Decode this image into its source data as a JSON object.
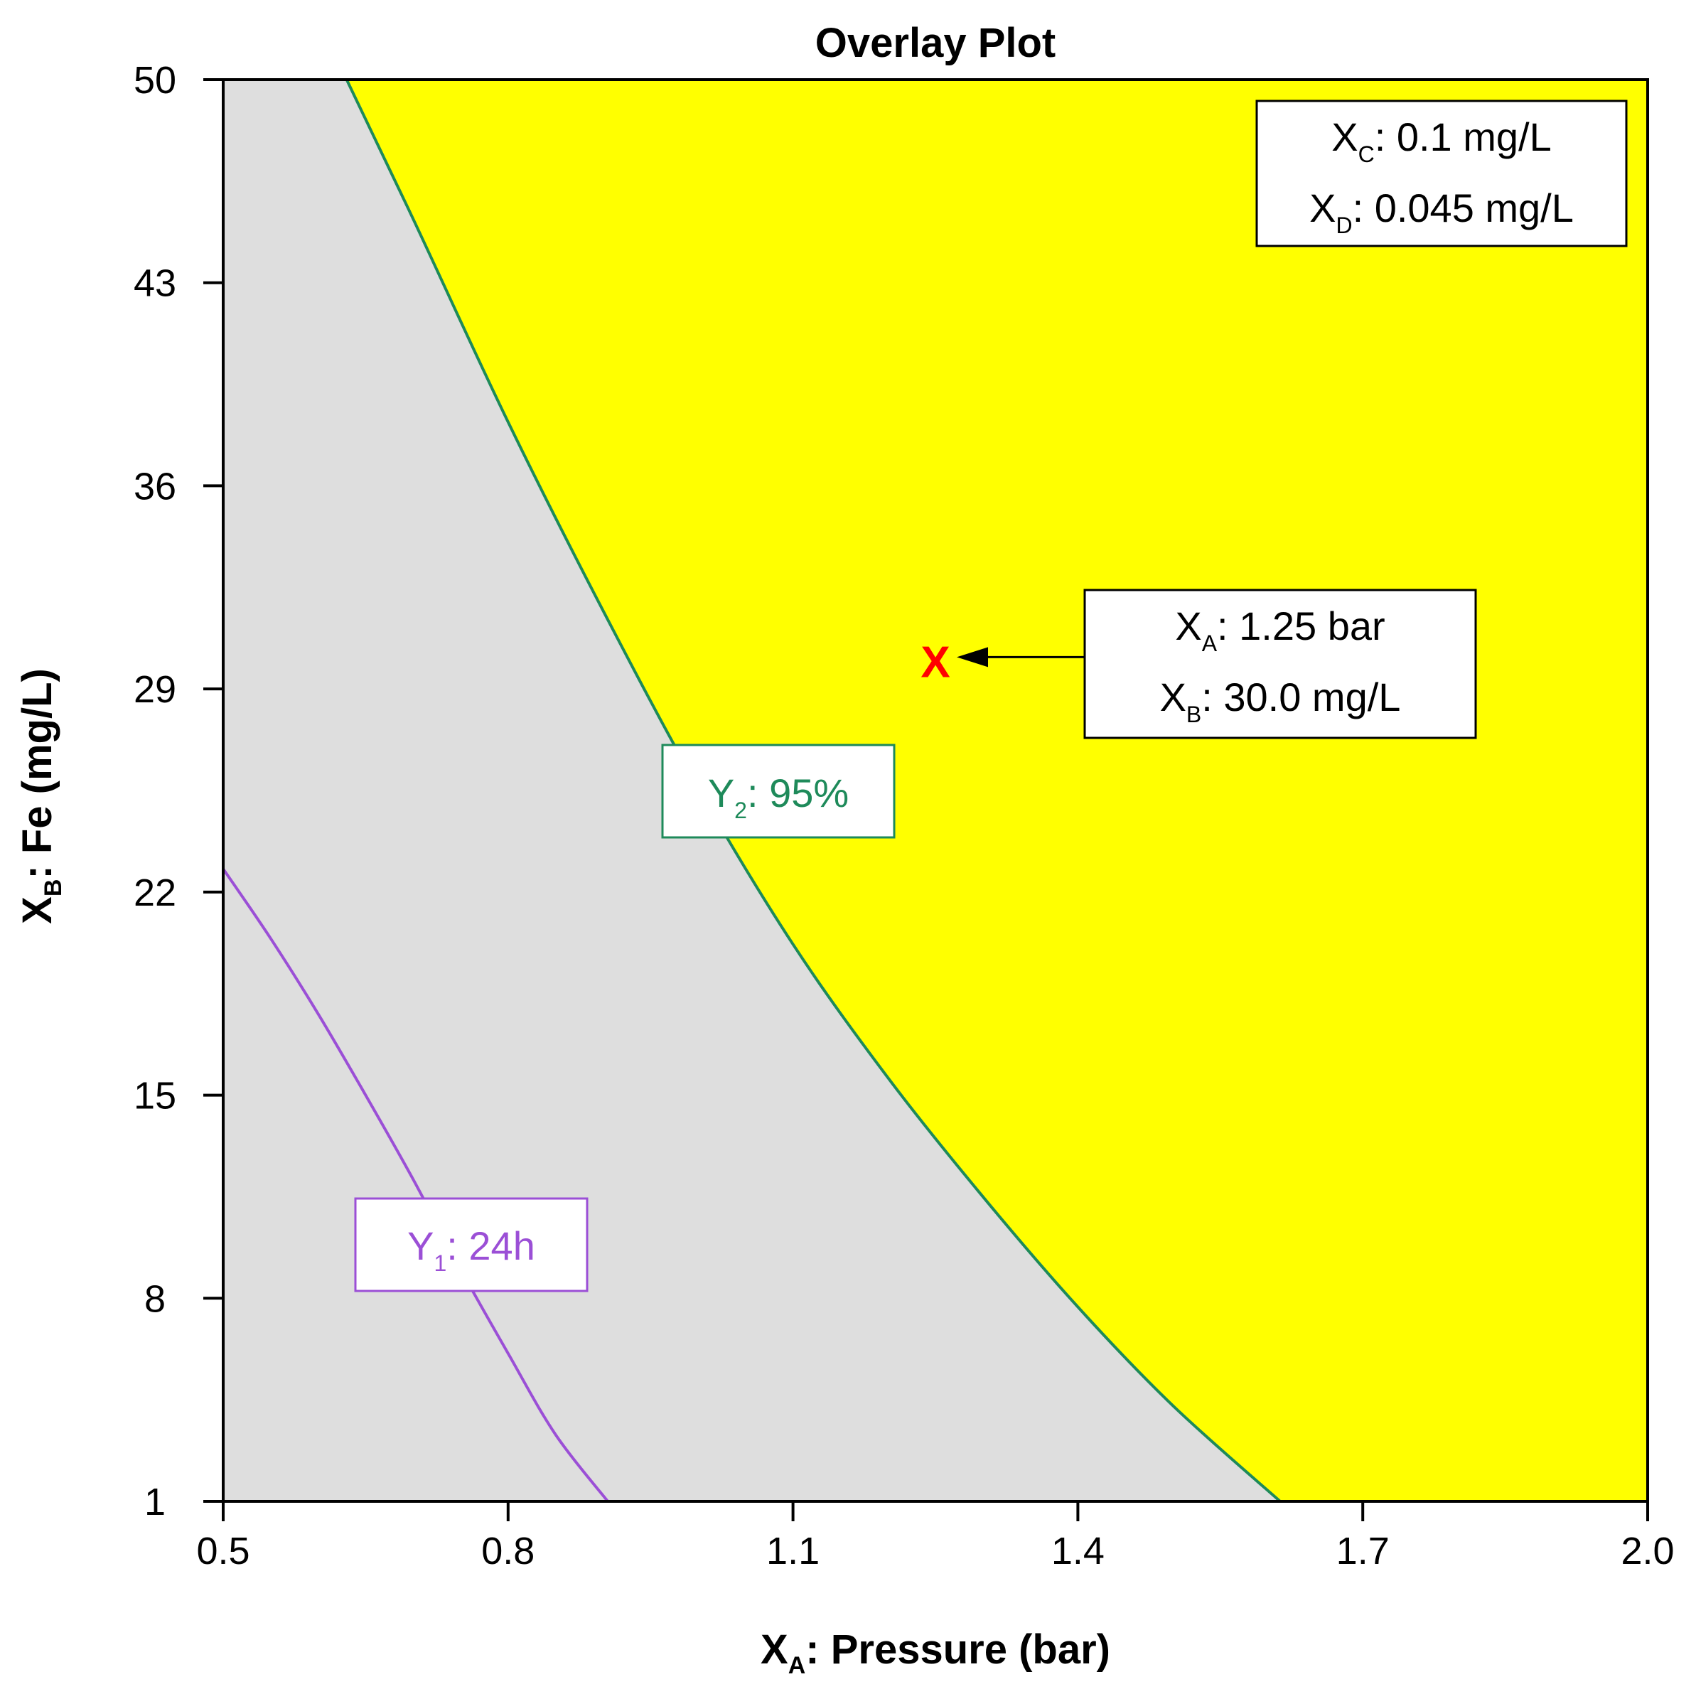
{
  "chart_data": {
    "type": "contour",
    "title": "Overlay Plot",
    "xlabel": {
      "main": "X",
      "sub": "A",
      "rest": ": Pressure (bar)"
    },
    "ylabel": {
      "main": "X",
      "sub": "B",
      "rest": ": Fe (mg/L)"
    },
    "xlim": [
      0.5,
      2.0
    ],
    "ylim": [
      1,
      50
    ],
    "x_ticks": [
      "0.5",
      "0.8",
      "1.1",
      "1.4",
      "1.7",
      "2.0"
    ],
    "y_ticks": [
      "1",
      "8",
      "15",
      "22",
      "29",
      "36",
      "43",
      "50"
    ],
    "grid": false,
    "colors": {
      "background_region": "#dedede",
      "feasible_region": "#ffff00",
      "y2_contour": "#1e8a5a",
      "y1_contour": "#9b4fd6",
      "marker": "#ff0000",
      "frame": "#000000"
    },
    "series": [
      {
        "name": "Y2: 95%",
        "label": {
          "main": "Y",
          "sub": "2",
          "rest": ": 95%"
        },
        "x": [
          0.63,
          0.7,
          0.8,
          0.9,
          1.0,
          1.1,
          1.2,
          1.3,
          1.4,
          1.5,
          1.613
        ],
        "y": [
          50,
          45.2,
          38.2,
          31.7,
          25.6,
          20.2,
          15.6,
          11.5,
          7.7,
          4.3,
          1
        ]
      },
      {
        "name": "Y1: 24h",
        "label": {
          "main": "Y",
          "sub": "1",
          "rest": ": 24h"
        },
        "x": [
          0.5,
          0.55,
          0.6,
          0.65,
          0.7,
          0.75,
          0.8,
          0.85,
          0.905
        ],
        "y": [
          22.8,
          20.4,
          17.8,
          15.0,
          12.1,
          9.0,
          6.1,
          3.3,
          1
        ]
      }
    ],
    "feasible_region_note": "region to the right of the Y2 contour is shaded yellow",
    "optimum_point": {
      "x": 1.25,
      "y": 30.0,
      "marker": "X"
    },
    "annotations": {
      "constants": [
        {
          "main": "X",
          "sub": "C",
          "rest": ": 0.1 mg/L"
        },
        {
          "main": "X",
          "sub": "D",
          "rest": ": 0.045 mg/L"
        }
      ],
      "point_box": [
        {
          "main": "X",
          "sub": "A",
          "rest": ": 1.25 bar"
        },
        {
          "main": "X",
          "sub": "B",
          "rest": ": 30.0 mg/L"
        }
      ]
    }
  }
}
